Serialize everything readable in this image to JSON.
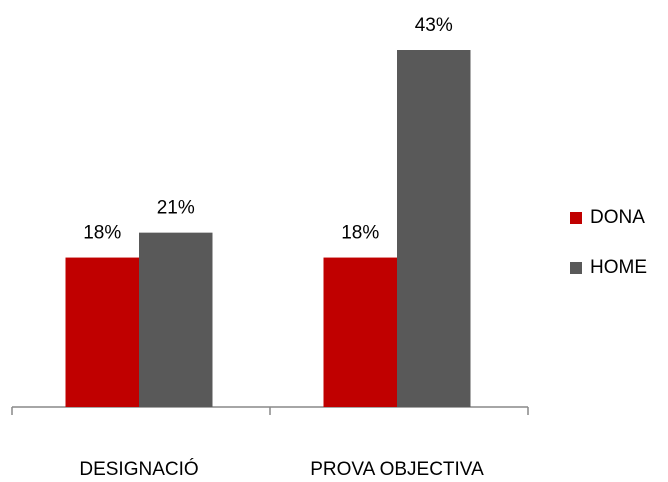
{
  "chart_data": {
    "type": "bar",
    "categories": [
      "DESIGNACIÓ",
      "PROVA OBJECTIVA"
    ],
    "series": [
      {
        "name": "DONA",
        "color": "#c00000",
        "values": [
          18,
          18
        ],
        "value_labels": [
          "18%",
          "18%"
        ]
      },
      {
        "name": "HOME",
        "color": "#595959",
        "values": [
          21,
          43
        ],
        "value_labels": [
          "21%",
          "43%"
        ]
      }
    ],
    "legend": "right"
  }
}
